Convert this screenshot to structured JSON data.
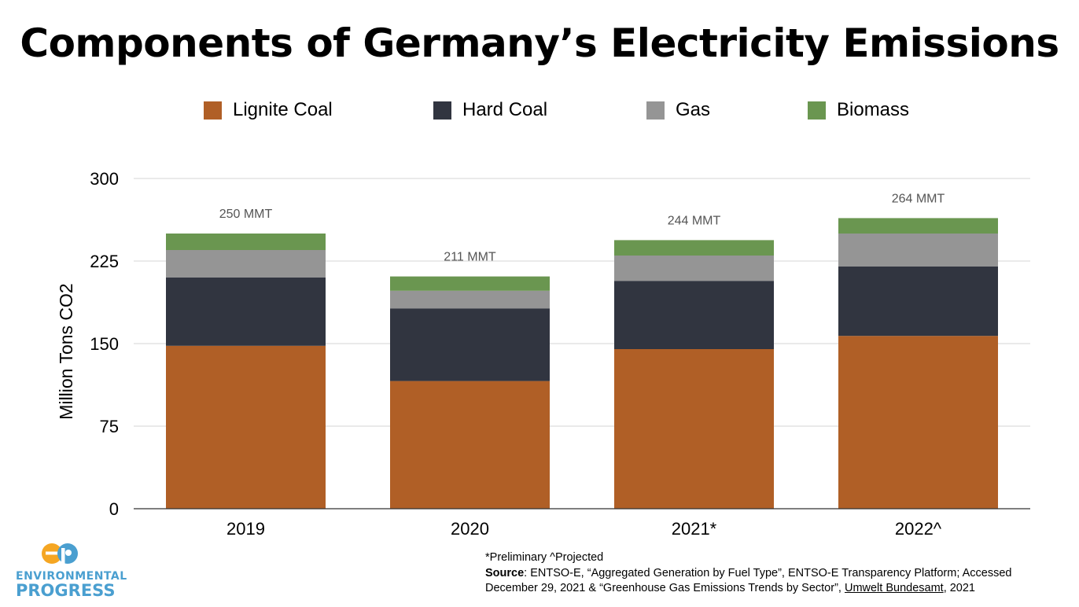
{
  "chart_data": {
    "type": "bar",
    "stacked": true,
    "title": "Components of Germany’s Electricity Emissions",
    "ylabel": "Million Tons CO2",
    "xlabel": "",
    "ylim": [
      0,
      300
    ],
    "yticks": [
      0,
      75,
      150,
      225,
      300
    ],
    "grid": true,
    "legend_position": "top",
    "categories": [
      "2019",
      "2020",
      "2021*",
      "2022^"
    ],
    "series": [
      {
        "name": "Lignite Coal",
        "color": "#b05f26",
        "values": [
          148,
          116,
          145,
          157
        ]
      },
      {
        "name": "Hard Coal",
        "color": "#313540",
        "values": [
          62,
          66,
          62,
          63
        ]
      },
      {
        "name": "Gas",
        "color": "#959595",
        "values": [
          25,
          16,
          23,
          30
        ]
      },
      {
        "name": "Biomass",
        "color": "#6a9650",
        "values": [
          15,
          13,
          14,
          14
        ]
      }
    ],
    "total_labels": [
      "250 MMT",
      "211 MMT",
      "244 MMT",
      "264 MMT"
    ]
  },
  "footnote": {
    "line1": "*Preliminary ^Projected",
    "source_label": "Source",
    "source_text_1": ": ENTSO-E, “Aggregated Generation by Fuel Type”, ENTSO-E Transparency Platform; Accessed",
    "source_text_2a": "December 29, 2021 & “Greenhouse Gas Emissions Trends by Sector”, ",
    "source_text_2b": "Umwelt Bundesamt",
    "source_text_2c": ", 2021"
  },
  "logo": {
    "line1": "ENVIRONMENTAL",
    "line2": "PROGRESS",
    "colors": {
      "orange": "#f5a623",
      "blue": "#4a9fd0"
    }
  }
}
